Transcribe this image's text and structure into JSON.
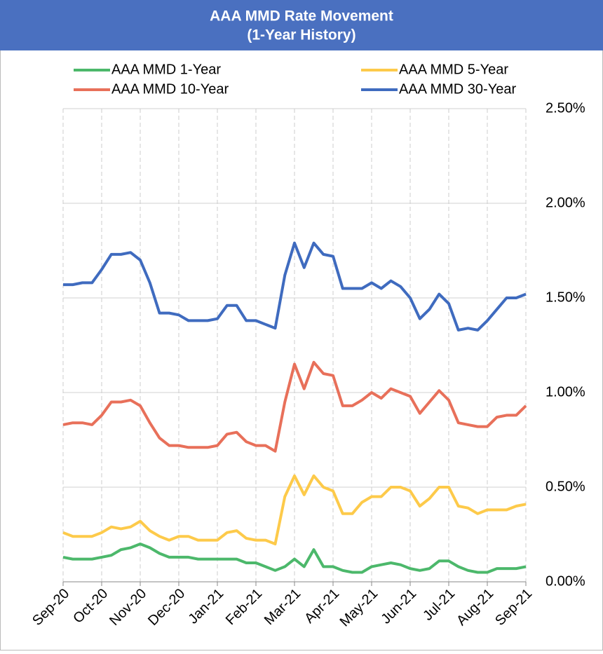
{
  "chart_data": {
    "type": "line",
    "title": "AAA MMD Rate Movement",
    "subtitle": "(1-Year History)",
    "categories": [
      "Sep-20",
      null,
      null,
      null,
      "Oct-20",
      null,
      null,
      null,
      "Nov-20",
      null,
      null,
      null,
      "Dec-20",
      null,
      null,
      null,
      "Jan-21",
      null,
      null,
      null,
      "Feb-21",
      null,
      null,
      null,
      "Mar-21",
      null,
      null,
      null,
      "Apr-21",
      null,
      null,
      null,
      "May-21",
      null,
      null,
      null,
      "Jun-21",
      null,
      null,
      null,
      "Jul-21",
      null,
      null,
      null,
      "Aug-21",
      null,
      null,
      null,
      "Sep-21"
    ],
    "series": [
      {
        "name": "AAA MMD 1-Year",
        "color": "#4cb86b",
        "values": [
          0.13,
          0.12,
          0.12,
          0.12,
          0.13,
          0.14,
          0.17,
          0.18,
          0.2,
          0.18,
          0.15,
          0.13,
          0.13,
          0.13,
          0.12,
          0.12,
          0.12,
          0.12,
          0.12,
          0.1,
          0.1,
          0.08,
          0.06,
          0.08,
          0.12,
          0.08,
          0.17,
          0.08,
          0.08,
          0.06,
          0.05,
          0.05,
          0.08,
          0.09,
          0.1,
          0.09,
          0.07,
          0.06,
          0.07,
          0.11,
          0.11,
          0.08,
          0.06,
          0.05,
          0.05,
          0.07,
          0.07,
          0.07,
          0.08
        ]
      },
      {
        "name": "AAA MMD 5-Year",
        "color": "#fdca4a",
        "values": [
          0.26,
          0.24,
          0.24,
          0.24,
          0.26,
          0.29,
          0.28,
          0.29,
          0.32,
          0.27,
          0.24,
          0.22,
          0.24,
          0.24,
          0.22,
          0.22,
          0.22,
          0.26,
          0.27,
          0.23,
          0.22,
          0.22,
          0.2,
          0.45,
          0.56,
          0.46,
          0.56,
          0.5,
          0.48,
          0.36,
          0.36,
          0.42,
          0.45,
          0.45,
          0.5,
          0.5,
          0.48,
          0.4,
          0.44,
          0.5,
          0.5,
          0.4,
          0.39,
          0.36,
          0.38,
          0.38,
          0.38,
          0.4,
          0.41
        ]
      },
      {
        "name": "AAA MMD 10-Year",
        "color": "#e8705a",
        "values": [
          0.83,
          0.84,
          0.84,
          0.83,
          0.88,
          0.95,
          0.95,
          0.96,
          0.93,
          0.84,
          0.76,
          0.72,
          0.72,
          0.71,
          0.71,
          0.71,
          0.72,
          0.78,
          0.79,
          0.74,
          0.72,
          0.72,
          0.69,
          0.95,
          1.15,
          1.02,
          1.16,
          1.1,
          1.09,
          0.93,
          0.93,
          0.96,
          1.0,
          0.97,
          1.02,
          1.0,
          0.98,
          0.89,
          0.95,
          1.01,
          0.96,
          0.84,
          0.83,
          0.82,
          0.82,
          0.87,
          0.88,
          0.88,
          0.93
        ]
      },
      {
        "name": "AAA MMD 30-Year",
        "color": "#3f6bbf",
        "values": [
          1.57,
          1.57,
          1.58,
          1.58,
          1.65,
          1.73,
          1.73,
          1.74,
          1.7,
          1.58,
          1.42,
          1.42,
          1.41,
          1.38,
          1.38,
          1.38,
          1.39,
          1.46,
          1.46,
          1.38,
          1.38,
          1.36,
          1.34,
          1.62,
          1.79,
          1.66,
          1.79,
          1.73,
          1.72,
          1.55,
          1.55,
          1.55,
          1.58,
          1.55,
          1.59,
          1.56,
          1.5,
          1.39,
          1.44,
          1.52,
          1.47,
          1.33,
          1.34,
          1.33,
          1.38,
          1.44,
          1.5,
          1.5,
          1.52
        ]
      }
    ],
    "ylim": [
      0,
      2.5
    ],
    "yticks": [
      {
        "value": 0,
        "label": "0.00%"
      },
      {
        "value": 0.5,
        "label": "0.50%"
      },
      {
        "value": 1,
        "label": "1.00%"
      },
      {
        "value": 1.5,
        "label": "1.50%"
      },
      {
        "value": 2,
        "label": "2.00%"
      },
      {
        "value": 2.5,
        "label": "2.50%"
      }
    ],
    "grid": true,
    "legend": "top"
  }
}
